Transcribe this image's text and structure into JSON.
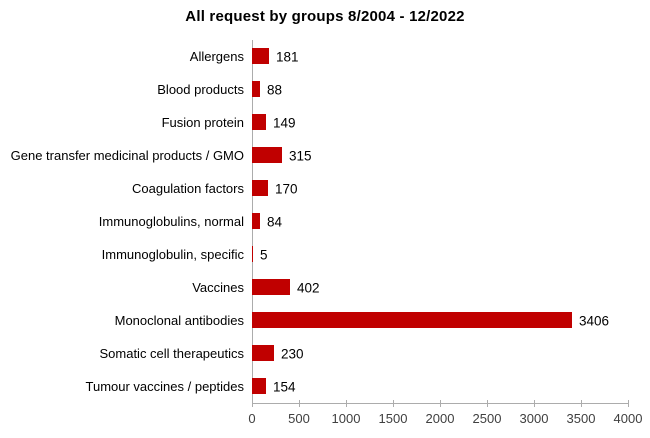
{
  "title": "All request by groups 8/2004 - 12/2022",
  "chart_data": {
    "type": "bar",
    "orientation": "horizontal",
    "title": "All request by groups 8/2004 - 12/2022",
    "categories": [
      "Allergens",
      "Blood products",
      "Fusion protein",
      "Gene transfer medicinal products / GMO",
      "Coagulation factors",
      "Immunoglobulins, normal",
      "Immunoglobulin, specific",
      "Vaccines",
      "Monoclonal antibodies",
      "Somatic cell therapeutics",
      "Tumour vaccines / peptides"
    ],
    "values": [
      181,
      88,
      149,
      315,
      170,
      84,
      5,
      402,
      3406,
      230,
      154
    ],
    "xlabel": "",
    "ylabel": "",
    "xlim": [
      0,
      4000
    ],
    "x_ticks": [
      0,
      500,
      1000,
      1500,
      2000,
      2500,
      3000,
      3500,
      4000
    ],
    "data_labels": true,
    "grid": false,
    "legend": "none",
    "bar_color": "#C00000",
    "axis_color": "#ACACAC",
    "label_color": "#000000",
    "tick_label_color": "#404040"
  }
}
